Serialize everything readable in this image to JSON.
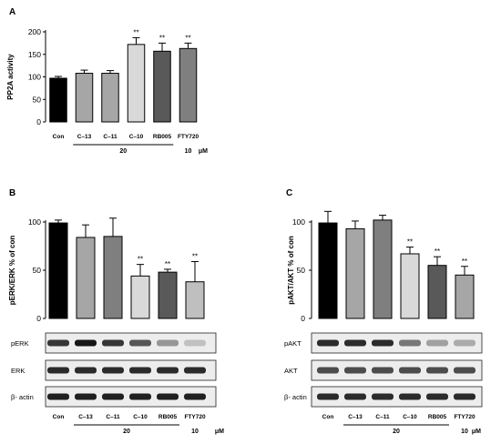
{
  "chart_data": [
    {
      "panel": "A",
      "type": "bar",
      "ylabel": "PP2A activity",
      "ylim": [
        0,
        200
      ],
      "yticks": [
        0,
        50,
        100,
        150,
        200
      ],
      "categories": [
        "Con",
        "C-13",
        "C-11",
        "C-10",
        "RB005",
        "FTY720"
      ],
      "values": [
        97,
        108,
        108,
        172,
        157,
        163
      ],
      "errors": [
        4,
        7,
        6,
        15,
        18,
        12
      ],
      "colors": [
        "#000000",
        "#a6a6a6",
        "#a6a6a6",
        "#d9d9d9",
        "#595959",
        "#7f7f7f"
      ],
      "significance": [
        "",
        "",
        "",
        "**",
        "**",
        "**"
      ],
      "dose_groups": [
        {
          "label": "20",
          "from": 1,
          "to": 4
        },
        {
          "label": "10",
          "from": 5,
          "to": 5
        }
      ],
      "dose_unit": "μM"
    },
    {
      "panel": "B",
      "type": "bar",
      "ylabel": "pERK/ERK % of con",
      "ylim": [
        0,
        100
      ],
      "yticks": [
        0,
        50,
        100
      ],
      "categories": [
        "Con",
        "C-13",
        "C-11",
        "C-10",
        "RB005",
        "FTY720"
      ],
      "values": [
        99,
        84,
        85,
        44,
        48,
        38
      ],
      "errors": [
        3,
        13,
        19,
        12,
        3,
        21
      ],
      "colors": [
        "#000000",
        "#a6a6a6",
        "#7f7f7f",
        "#d9d9d9",
        "#595959",
        "#bfbfbf"
      ],
      "significance": [
        "",
        "",
        "",
        "**",
        "**",
        "**"
      ],
      "blots": [
        "pERK",
        "ERK",
        "β- actin"
      ],
      "dose_groups": [
        {
          "label": "20",
          "from": 1,
          "to": 4
        },
        {
          "label": "10",
          "from": 5,
          "to": 5
        }
      ],
      "dose_unit": "μM"
    },
    {
      "panel": "C",
      "type": "bar",
      "ylabel": "pAKT/AKT % of con",
      "ylim": [
        0,
        100
      ],
      "yticks": [
        0,
        50,
        100
      ],
      "categories": [
        "Con",
        "C-13",
        "C-11",
        "C-10",
        "RB005",
        "FTY720"
      ],
      "values": [
        99,
        93,
        102,
        67,
        55,
        45
      ],
      "errors": [
        12,
        8,
        5,
        7,
        9,
        9
      ],
      "colors": [
        "#000000",
        "#a6a6a6",
        "#7f7f7f",
        "#d9d9d9",
        "#595959",
        "#a6a6a6"
      ],
      "significance": [
        "",
        "",
        "",
        "**",
        "**",
        "**"
      ],
      "blots": [
        "pAKT",
        "AKT",
        "β- actin"
      ],
      "dose_groups": [
        {
          "label": "20",
          "from": 1,
          "to": 4
        },
        {
          "label": "10",
          "from": 5,
          "to": 5
        }
      ],
      "dose_unit": "μM"
    }
  ]
}
